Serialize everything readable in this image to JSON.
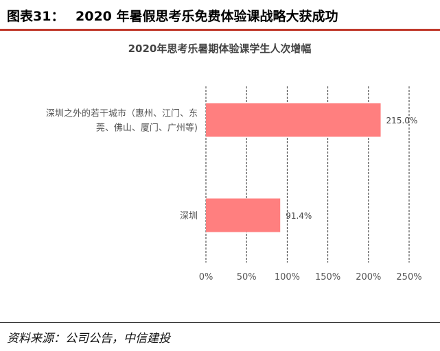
{
  "figure": {
    "label": "图表31：",
    "title": "2020 年暑假思考乐免费体验课战略大获成功",
    "source": "资料来源：公司公告，中信建投"
  },
  "colors": {
    "accent": "#c0392b",
    "bar": "#ff7f7f"
  },
  "chart_data": {
    "type": "bar",
    "orientation": "horizontal",
    "title": "2020年思考乐暑期体验课学生人次增幅",
    "categories": [
      [
        "深圳之外的若干城市（惠州、江门、东",
        "莞、佛山、厦门、广州等)"
      ],
      [
        "深圳"
      ]
    ],
    "values": [
      215.0,
      91.4
    ],
    "data_labels": [
      "215.0%",
      "91.4%"
    ],
    "xlim": [
      0,
      250
    ],
    "xticks": [
      "0%",
      "50%",
      "100%",
      "150%",
      "200%",
      "250%"
    ],
    "grid": "vertical dashed",
    "legend": "none",
    "xlabel": "",
    "ylabel": ""
  }
}
